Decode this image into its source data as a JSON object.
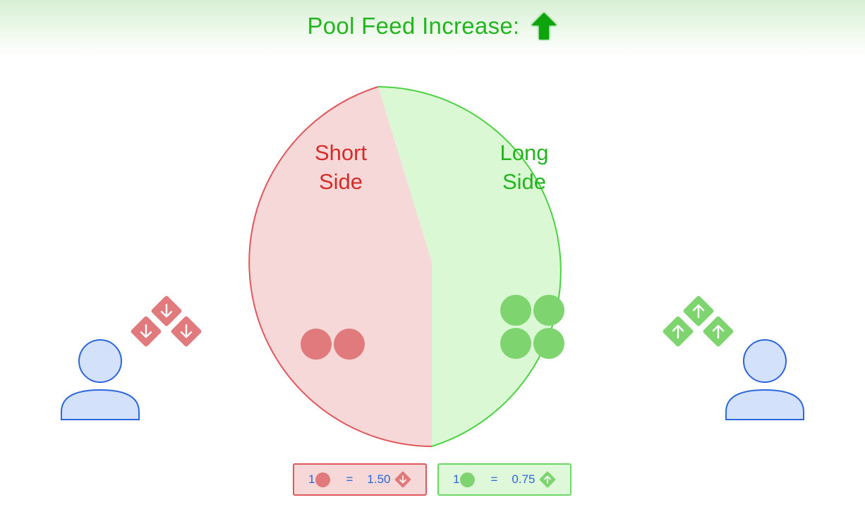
{
  "header": {
    "title": "Pool Feed Increase:",
    "indicator_icon": "up-arrow-icon",
    "indicator_color": "#22b51d"
  },
  "pool": {
    "short_side": {
      "label_line1": "Short",
      "label_line2": "Side",
      "color": "#d52b2b",
      "fill": "#f7d8d8",
      "token_count": 2,
      "token_color": "#e07a7c"
    },
    "long_side": {
      "label_line1": "Long",
      "label_line2": "Side",
      "color": "#22b51d",
      "fill": "#d9f8d3",
      "token_count": 4,
      "token_color": "#7ed56f"
    }
  },
  "participants": {
    "left": {
      "icon": "person-icon",
      "token_icon": "down-arrow-diamond-icon",
      "token_count": 3
    },
    "right": {
      "icon": "person-icon",
      "token_icon": "up-arrow-diamond-icon",
      "token_count": 3
    }
  },
  "legend": {
    "short": {
      "qty": "1",
      "equals": "=",
      "value": "1.50",
      "icon": "down-arrow-diamond-icon"
    },
    "long": {
      "qty": "1",
      "equals": "=",
      "value": "0.75",
      "icon": "up-arrow-diamond-icon"
    }
  }
}
